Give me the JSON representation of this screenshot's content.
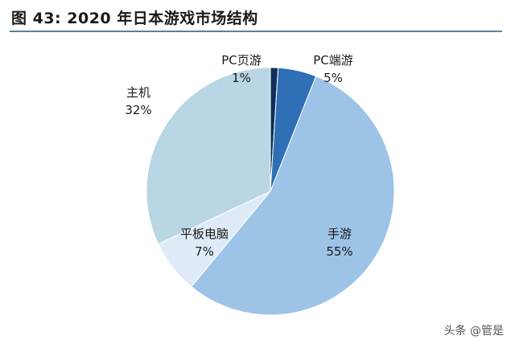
{
  "title": "图 43:  2020 年日本游戏市场结构",
  "watermark": "头条 @管是",
  "chart_data": {
    "type": "pie",
    "title": "",
    "slices": [
      {
        "label": "PC页游",
        "value": 1,
        "value_label": "1%",
        "color": "#0e2f5a"
      },
      {
        "label": "PC端游",
        "value": 5,
        "value_label": "5%",
        "color": "#2e6fb6"
      },
      {
        "label": "手游",
        "value": 55,
        "value_label": "55%",
        "color": "#9dc3e6"
      },
      {
        "label": "平板电脑",
        "value": 7,
        "value_label": "7%",
        "color": "#deebf7"
      },
      {
        "label": "主机",
        "value": 32,
        "value_label": "32%",
        "color": "#b8d6e3"
      }
    ],
    "start_angle_deg": 0,
    "direction": "clockwise"
  }
}
